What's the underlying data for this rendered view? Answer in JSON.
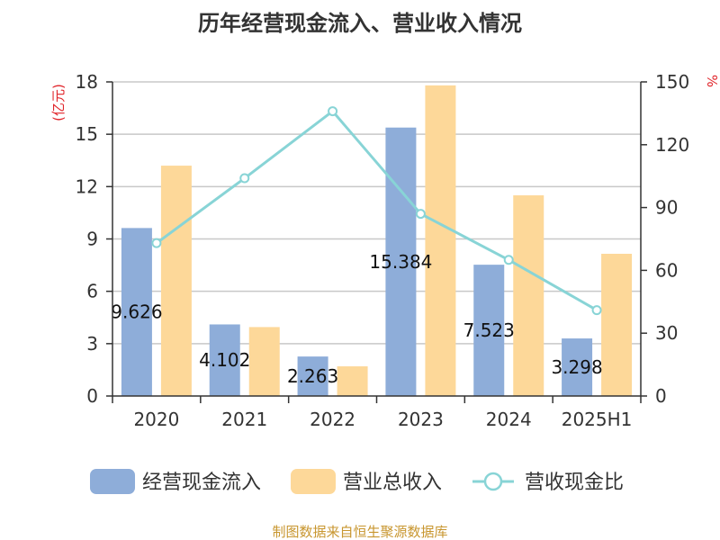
{
  "chart_data": {
    "type": "bar",
    "title": "历年经营现金流入、营业收入情况",
    "categories": [
      "2020",
      "2021",
      "2022",
      "2023",
      "2024",
      "2025H1"
    ],
    "series": [
      {
        "name": "经营现金流入",
        "axis": "left",
        "color": "#8eadd9",
        "values": [
          9.626,
          4.102,
          2.263,
          15.384,
          7.523,
          3.298
        ],
        "labels": [
          "9.626",
          "4.102",
          "2.263",
          "15.384",
          "7.523",
          "3.298"
        ]
      },
      {
        "name": "营业总收入",
        "axis": "left",
        "color": "#fdd899",
        "values": [
          13.2,
          3.95,
          1.7,
          17.8,
          11.5,
          8.15
        ]
      },
      {
        "name": "营收现金比",
        "axis": "right",
        "type": "line",
        "color": "#88d4d6",
        "values": [
          73,
          104,
          136,
          87,
          65,
          41
        ]
      }
    ],
    "y_left": {
      "unit": "(亿元)",
      "ylim": [
        0,
        18
      ],
      "ticks": [
        0,
        3,
        6,
        9,
        12,
        15,
        18
      ]
    },
    "y_right": {
      "unit": "%",
      "ylim": [
        0,
        150
      ],
      "ticks": [
        0,
        30,
        60,
        90,
        120,
        150
      ]
    },
    "grid": true,
    "legend_position": "bottom"
  },
  "source": "制图数据来自恒生聚源数据库"
}
